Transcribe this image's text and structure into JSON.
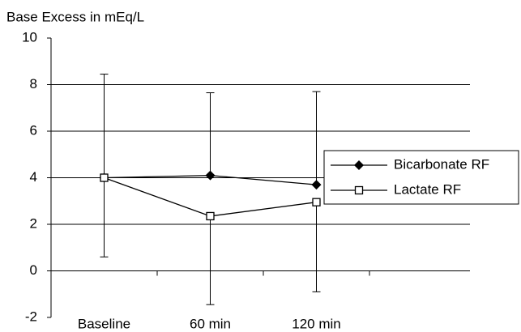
{
  "chart_data": {
    "type": "line",
    "y_label": "Base Excess in mEq/L",
    "categories": [
      "Baseline",
      "60 min",
      "120 min"
    ],
    "series": [
      {
        "name": "Bicarbonate RF",
        "color": "#000000",
        "marker": "diamond",
        "values": [
          4.0,
          4.1,
          3.7
        ],
        "errors": [
          4.45,
          3.55,
          4.0
        ],
        "error_direction": "up"
      },
      {
        "name": "Lactate RF",
        "color": "#000000",
        "marker": "square",
        "values": [
          4.0,
          2.35,
          2.95
        ],
        "errors": [
          3.4,
          3.8,
          3.85
        ],
        "error_direction": "down"
      }
    ],
    "ylim": [
      -2,
      10
    ],
    "yticks": [
      -2,
      0,
      2,
      4,
      6,
      8,
      10
    ],
    "grid": true,
    "legend": "right"
  }
}
